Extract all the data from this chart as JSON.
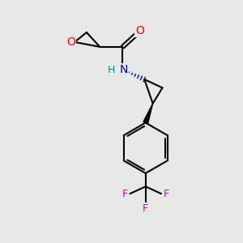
{
  "background_color": "#e8e8e8",
  "atom_colors": {
    "C": "#000000",
    "O": "#ff0000",
    "N": "#0000cd",
    "H": "#008b8b",
    "F": "#cc00cc"
  },
  "figsize": [
    3.0,
    3.0
  ],
  "dpi": 100
}
